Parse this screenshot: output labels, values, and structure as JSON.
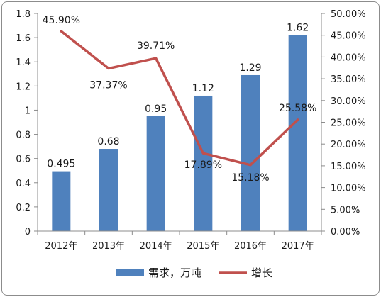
{
  "chart_data": {
    "type": "bar",
    "categories": [
      "2012年",
      "2013年",
      "2014年",
      "2015年",
      "2016年",
      "2017年"
    ],
    "series": [
      {
        "name": "需求，万吨",
        "type": "bar",
        "axis": "left",
        "color": "#4f81bd",
        "values": [
          0.495,
          0.68,
          0.95,
          1.12,
          1.29,
          1.62
        ],
        "labels": [
          "0.495",
          "0.68",
          "0.95",
          "1.12",
          "1.29",
          "1.62"
        ]
      },
      {
        "name": "增长",
        "type": "line",
        "axis": "right",
        "color": "#c0504d",
        "values": [
          45.9,
          37.37,
          39.71,
          17.89,
          15.18,
          25.58
        ],
        "labels": [
          "45.90%",
          "37.37%",
          "39.71%",
          "17.89%",
          "15.18%",
          "25.58%"
        ]
      }
    ],
    "y_left": {
      "lim": [
        0,
        1.8
      ],
      "ticks": [
        0,
        0.2,
        0.4,
        0.6,
        0.8,
        1,
        1.2,
        1.4,
        1.6,
        1.8
      ],
      "tick_labels": [
        "0",
        "0.2",
        "0.4",
        "0.6",
        "0.8",
        "1",
        "1.2",
        "1.4",
        "1.6",
        "1.8"
      ]
    },
    "y_right": {
      "lim": [
        0,
        50
      ],
      "ticks": [
        0,
        5,
        10,
        15,
        20,
        25,
        30,
        35,
        40,
        45,
        50
      ],
      "tick_labels": [
        "0.00%",
        "5.00%",
        "10.00%",
        "15.00%",
        "20.00%",
        "25.00%",
        "30.00%",
        "35.00%",
        "40.00%",
        "45.00%",
        "50.00%"
      ]
    },
    "grid": false,
    "legend": "bottom",
    "title": "",
    "xlabel": "",
    "ylabel": ""
  }
}
